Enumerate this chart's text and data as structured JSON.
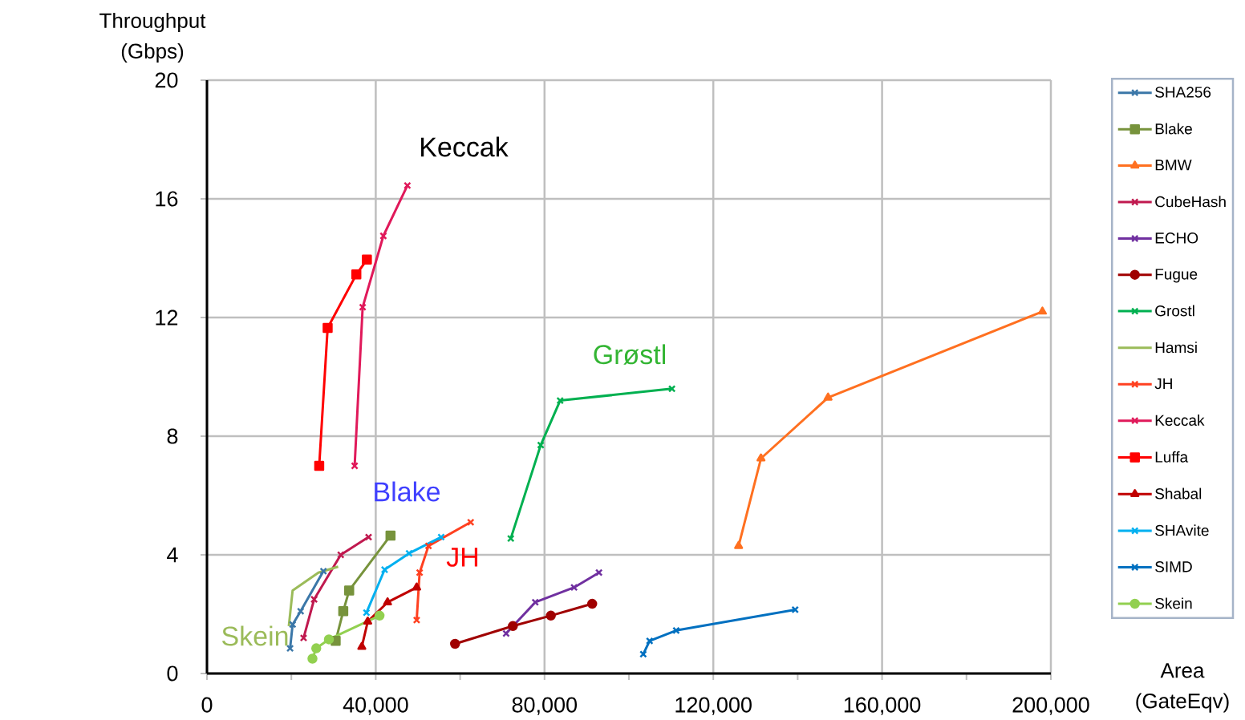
{
  "chart_data": {
    "type": "line",
    "xlabel": "Area (GateEqv)",
    "ylabel": "Throughput (Gbps)",
    "xlim": [
      0,
      200000
    ],
    "ylim": [
      0,
      20
    ],
    "xticks": [
      0,
      {
        "value": 20000,
        "label": null
      },
      {
        "value": 40000,
        "label": "40,000"
      },
      {
        "value": 60000,
        "label": null
      },
      {
        "value": 80000,
        "label": "80,000"
      },
      {
        "value": 100000,
        "label": null
      },
      {
        "value": 120000,
        "label": "120,000"
      },
      {
        "value": 140000,
        "label": null
      },
      {
        "value": 160000,
        "label": "160,000"
      },
      {
        "value": 180000,
        "label": null
      },
      {
        "value": 200000,
        "label": "200,000"
      }
    ],
    "yticks": [
      0,
      4,
      8,
      12,
      16,
      20
    ],
    "grid": true,
    "legend": "right",
    "annotations": [
      "Keccak",
      "Grøstl",
      "Blake",
      "JH",
      "Skein"
    ],
    "series": [
      {
        "name": "SHA256",
        "color": "#3b77a8",
        "marker": "cross",
        "x": [
          19700,
          20300,
          22200,
          27600
        ],
        "values": [
          0.85,
          1.65,
          2.1,
          3.45
        ]
      },
      {
        "name": "Blake",
        "color": "#77933c",
        "marker": "square",
        "x": [
          30500,
          32300,
          33700,
          43500
        ],
        "values": [
          1.1,
          2.1,
          2.8,
          4.65
        ]
      },
      {
        "name": "BMW",
        "color": "#ff7020",
        "marker": "triangle",
        "x": [
          126000,
          131300,
          147200,
          198000
        ],
        "values": [
          4.3,
          7.25,
          9.3,
          12.2
        ]
      },
      {
        "name": "CubeHash",
        "color": "#c0194f",
        "marker": "cross",
        "x": [
          22900,
          25400,
          31700,
          38300
        ],
        "values": [
          1.2,
          2.5,
          4.0,
          4.6
        ]
      },
      {
        "name": "ECHO",
        "color": "#7030a0",
        "marker": "cross",
        "x": [
          70900,
          77800,
          87000,
          92900
        ],
        "values": [
          1.35,
          2.4,
          2.9,
          3.4
        ]
      },
      {
        "name": "Fugue",
        "color": "#a00000",
        "marker": "circle",
        "x": [
          58800,
          72500,
          81500,
          91300
        ],
        "values": [
          1.0,
          1.6,
          1.95,
          2.35
        ]
      },
      {
        "name": "Grostl",
        "color": "#00b050",
        "marker": "cross",
        "x": [
          72000,
          79100,
          83700,
          110200
        ],
        "values": [
          4.55,
          7.7,
          9.2,
          9.6
        ]
      },
      {
        "name": "Hamsi",
        "color": "#9bbb59",
        "marker": "none",
        "x": [
          19400,
          20300,
          26400,
          31100
        ],
        "values": [
          1.6,
          2.8,
          3.4,
          3.6
        ]
      },
      {
        "name": "JH",
        "color": "#ff4020",
        "marker": "cross",
        "x": [
          49700,
          50400,
          52500,
          62500
        ],
        "values": [
          1.8,
          3.4,
          4.3,
          5.1
        ]
      },
      {
        "name": "Keccak",
        "color": "#e0195a",
        "marker": "cross",
        "x": [
          35000,
          36900,
          41800,
          47500
        ],
        "values": [
          7.0,
          12.35,
          14.75,
          16.45
        ]
      },
      {
        "name": "Luffa",
        "color": "#ff0000",
        "marker": "square",
        "x": [
          26600,
          28600,
          35400,
          37900
        ],
        "values": [
          7.0,
          11.65,
          13.45,
          13.95
        ]
      },
      {
        "name": "Shabal",
        "color": "#c00000",
        "marker": "triangle",
        "x": [
          36700,
          38100,
          42800,
          49700
        ],
        "values": [
          0.9,
          1.75,
          2.4,
          2.9
        ]
      },
      {
        "name": "SHAvite",
        "color": "#00b0f0",
        "marker": "cross",
        "x": [
          37800,
          42100,
          47900,
          55500
        ],
        "values": [
          2.05,
          3.5,
          4.05,
          4.6
        ]
      },
      {
        "name": "SIMD",
        "color": "#0070c0",
        "marker": "cross",
        "x": [
          103400,
          104900,
          111200,
          139400
        ],
        "values": [
          0.65,
          1.1,
          1.45,
          2.15
        ]
      },
      {
        "name": "Skein",
        "color": "#92d050",
        "marker": "circle",
        "x": [
          25000,
          25900,
          28900,
          40900
        ],
        "values": [
          0.5,
          0.85,
          1.15,
          1.95
        ]
      }
    ]
  }
}
